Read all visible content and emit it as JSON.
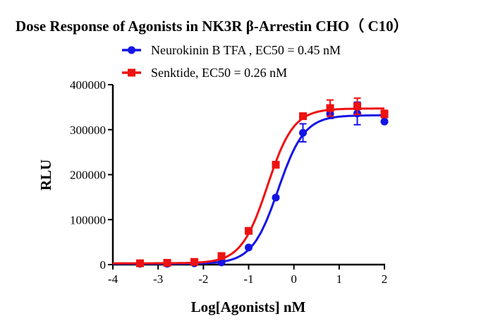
{
  "chart_data": {
    "type": "scatter",
    "title": "Dose Response of Agonists  in NK3R β-Arrestin CHO（ C10）",
    "xlabel": "Log[Agonists] nM",
    "ylabel": "RLU",
    "xlim": [
      -4,
      2
    ],
    "ylim": [
      0,
      400000
    ],
    "xticks": [
      "-4",
      "-3",
      "-2",
      "-1",
      "0",
      "1",
      "2"
    ],
    "yticks": [
      "0",
      "100000",
      "200000",
      "300000",
      "400000"
    ],
    "grid": false,
    "legend_placement": "top",
    "series": [
      {
        "name": "Neurokinin B TFA , EC50 = 0.45 nM",
        "color": "#1414e6",
        "marker": "circle",
        "x": [
          -3.4,
          -2.8,
          -2.2,
          -1.6,
          -1.0,
          -0.4,
          0.2,
          0.8,
          1.4,
          2.0
        ],
        "y": [
          2000,
          2000,
          3000,
          5000,
          38000,
          149000,
          293000,
          335000,
          336000,
          318000
        ],
        "error": [
          0,
          0,
          0,
          0,
          0,
          3000,
          20000,
          10000,
          25000,
          0
        ],
        "fit": {
          "bottom": 2000,
          "top": 332000,
          "logEC50": -0.347,
          "hill": 1.5
        }
      },
      {
        "name": "Senktide, EC50 = 0.26 nM",
        "color": "#ee1111",
        "marker": "square",
        "x": [
          -3.4,
          -2.8,
          -2.2,
          -1.6,
          -1.0,
          -0.4,
          0.2,
          0.8,
          1.4,
          2.0
        ],
        "y": [
          3000,
          4000,
          6000,
          19000,
          75000,
          222000,
          330000,
          348000,
          352000,
          335000
        ],
        "error": [
          0,
          0,
          0,
          0,
          0,
          3000,
          4000,
          18000,
          18000,
          8000
        ],
        "fit": {
          "bottom": 3000,
          "top": 347000,
          "logEC50": -0.585,
          "hill": 1.5
        }
      }
    ]
  }
}
